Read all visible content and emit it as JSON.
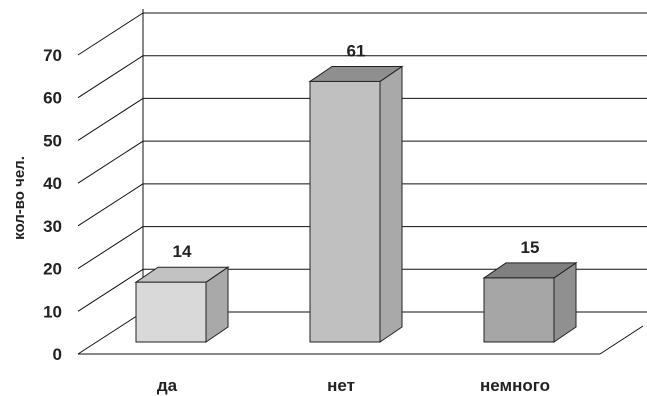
{
  "chart_data": {
    "type": "bar",
    "ylabel": "кол-во чел.",
    "ylim": [
      0,
      70
    ],
    "yticks": [
      0,
      10,
      20,
      30,
      40,
      50,
      60,
      70
    ],
    "categories": [
      "да",
      "нет",
      "немного"
    ],
    "values": [
      14,
      61,
      15
    ],
    "colors": {
      "bars": [
        "#d9d9d9",
        "#c0c0c0",
        "#a6a6a6"
      ],
      "bar_tops": [
        "#c2c2c2",
        "#8f8f8f",
        "#7f7f7f"
      ],
      "bar_sides": [
        "#a9a9a9",
        "#a9a9a9",
        "#909090"
      ]
    },
    "three_d": true,
    "grid": true,
    "legend": "none"
  }
}
